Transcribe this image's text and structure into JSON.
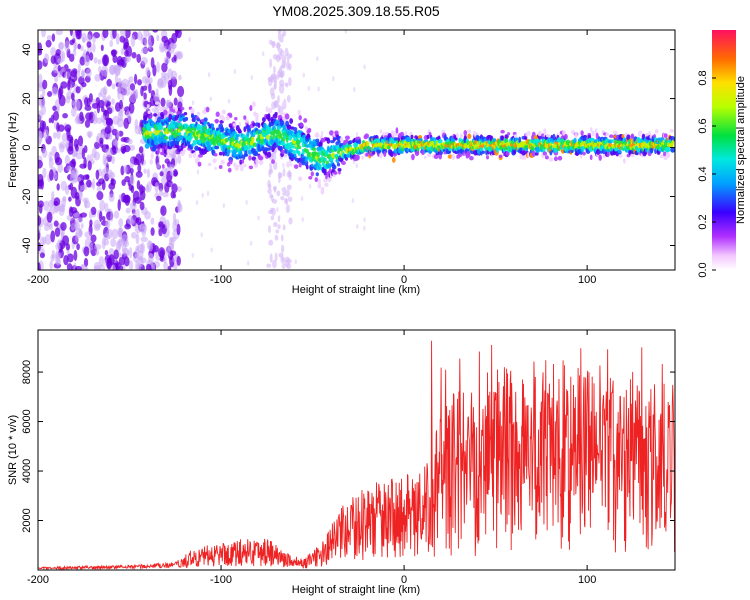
{
  "title": "YM08.2025.309.18.55.R05",
  "colors": {
    "snr_line": "#ee2222",
    "frame": "#000000",
    "scatter_purple": "#6a00e0",
    "scatter_light": "#c9a6f5"
  },
  "chart_data": [
    {
      "type": "heatmap",
      "title": "",
      "xlabel": "Height of straight line (km)",
      "ylabel": "Frequency (Hz)",
      "xlim": [
        -200,
        148
      ],
      "ylim": [
        -50,
        48
      ],
      "xticks": [
        -200,
        -100,
        0,
        100
      ],
      "xtick_labels": [
        "-200",
        "-100",
        "0",
        "100"
      ],
      "yticks": [
        -40,
        -20,
        0,
        20,
        40
      ],
      "ytick_labels": [
        "-40",
        "-20",
        "0",
        "20",
        "40"
      ],
      "colorbar": {
        "label": "Normalized spectral amplitude",
        "range": [
          0,
          1
        ],
        "ticks": [
          0.0,
          0.2,
          0.4,
          0.6,
          0.8
        ],
        "tick_labels": [
          "0.0",
          "0.2",
          "0.4",
          "0.6",
          "0.8"
        ]
      },
      "ridge": [
        {
          "x": -140,
          "f": 6
        },
        {
          "x": -120,
          "f": 7
        },
        {
          "x": -105,
          "f": 4
        },
        {
          "x": -90,
          "f": 1
        },
        {
          "x": -70,
          "f": 6
        },
        {
          "x": -55,
          "f": 0
        },
        {
          "x": -45,
          "f": -5
        },
        {
          "x": -35,
          "f": -2
        },
        {
          "x": -20,
          "f": 1
        },
        {
          "x": 0,
          "f": 1
        },
        {
          "x": 50,
          "f": 1
        },
        {
          "x": 100,
          "f": 1
        },
        {
          "x": 148,
          "f": 1
        }
      ]
    },
    {
      "type": "line",
      "title": "",
      "xlabel": "Height of straight line (km)",
      "ylabel": "SNR (10 * v/v)",
      "xlim": [
        -200,
        148
      ],
      "ylim": [
        0,
        9700
      ],
      "xticks": [
        -200,
        -100,
        0,
        100
      ],
      "xtick_labels": [
        "-200",
        "-100",
        "0",
        "100"
      ],
      "yticks": [
        2000,
        4000,
        6000,
        8000
      ],
      "ytick_labels": [
        "2000",
        "4000",
        "6000",
        "8000"
      ],
      "envelope": [
        {
          "x": -200,
          "y": 100
        },
        {
          "x": -160,
          "y": 150
        },
        {
          "x": -125,
          "y": 250
        },
        {
          "x": -115,
          "y": 700
        },
        {
          "x": -100,
          "y": 900
        },
        {
          "x": -90,
          "y": 1000
        },
        {
          "x": -75,
          "y": 1100
        },
        {
          "x": -65,
          "y": 600
        },
        {
          "x": -55,
          "y": 350
        },
        {
          "x": -45,
          "y": 900
        },
        {
          "x": -35,
          "y": 2000
        },
        {
          "x": -20,
          "y": 2800
        },
        {
          "x": -5,
          "y": 3000
        },
        {
          "x": 10,
          "y": 3200
        },
        {
          "x": 20,
          "y": 4500
        },
        {
          "x": 30,
          "y": 5500
        },
        {
          "x": 50,
          "y": 5800
        },
        {
          "x": 80,
          "y": 6200
        },
        {
          "x": 100,
          "y": 5800
        },
        {
          "x": 130,
          "y": 5500
        },
        {
          "x": 148,
          "y": 5400
        }
      ],
      "peak_values": [
        9300,
        9500,
        9700,
        8500,
        8100
      ]
    }
  ]
}
